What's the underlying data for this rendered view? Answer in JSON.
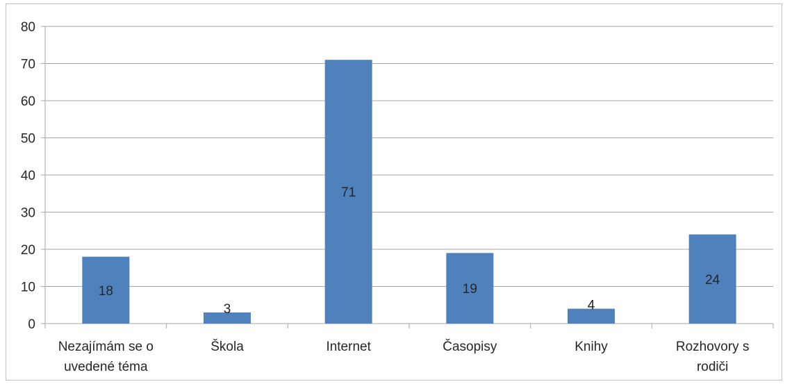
{
  "chart_data": {
    "type": "bar",
    "title": "",
    "xlabel": "",
    "ylabel": "",
    "categories": [
      [
        "Nezajímám se o",
        "uvedené téma"
      ],
      [
        "Škola"
      ],
      [
        "Internet"
      ],
      [
        "Časopisy"
      ],
      [
        "Knihy"
      ],
      [
        "Rozhovory s",
        "rodiči"
      ]
    ],
    "values": [
      18,
      3,
      71,
      19,
      4,
      24
    ],
    "data_labels": [
      "18",
      "3",
      "71",
      "19",
      "4",
      "24"
    ],
    "ylim": [
      0,
      80
    ],
    "yticks": [
      0,
      10,
      20,
      30,
      40,
      50,
      60,
      70,
      80
    ],
    "ytick_labels": [
      "0",
      "10",
      "20",
      "30",
      "40",
      "50",
      "60",
      "70",
      "80"
    ],
    "grid": true,
    "legend": "none",
    "colors": {
      "bar": "#4f81bd",
      "grid": "#a6a6a6",
      "axis": "#a6a6a6",
      "text": "#262626"
    }
  }
}
